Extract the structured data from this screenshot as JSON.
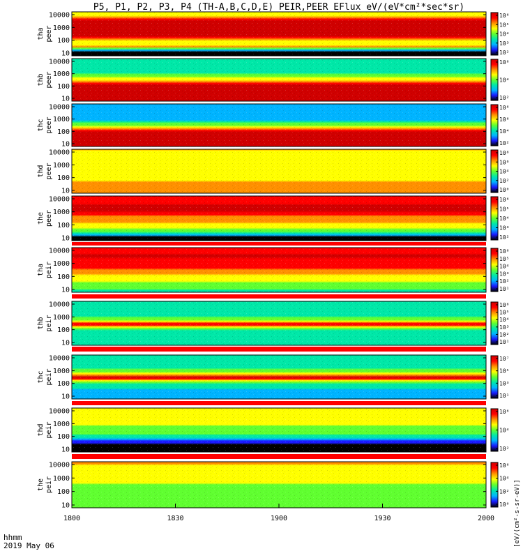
{
  "chart_data": {
    "type": "heatmap",
    "title": "P5, P1, P2, P3, P4 (TH-A,B,C,D,E) PEIR,PEER EFlux eV/(eV*cm²*sec*sr)",
    "x": {
      "label_line1": "hhmm",
      "label_line2": "2019 May 06",
      "ticks": [
        "1800",
        "1830",
        "1900",
        "1930",
        "2000"
      ],
      "range_hhmm": [
        "1800",
        "2000"
      ]
    },
    "colorbar_label": "[eV/(cm²-s-sr-eV)]",
    "palette": [
      "#000000",
      "#1a1aff",
      "#00b4ff",
      "#00e8a8",
      "#60ff30",
      "#ffff00",
      "#ff9000",
      "#ff0000",
      "#d00000"
    ],
    "panels": [
      {
        "probe": "tha",
        "species": "peer",
        "y_ticks": [
          "10000",
          "1000",
          "100",
          "10"
        ],
        "cb_ticks": [
          "10⁶",
          "10⁵",
          "10⁴",
          "10³",
          "10²"
        ],
        "profile": [
          [
            0.0,
            4.5
          ],
          [
            0.1,
            4.8
          ],
          [
            0.18,
            8.0
          ],
          [
            0.55,
            7.8
          ],
          [
            0.7,
            4.5
          ],
          [
            0.8,
            6.0
          ],
          [
            0.88,
            1.5
          ],
          [
            0.93,
            0.0
          ],
          [
            1.0,
            0.0
          ]
        ]
      },
      {
        "probe": "thb",
        "species": "peer",
        "y_ticks": [
          "10000",
          "1000",
          "100",
          "10"
        ],
        "cb_ticks": [
          "10⁶",
          "10⁴",
          "10²"
        ],
        "profile": [
          [
            0.0,
            3.0
          ],
          [
            0.3,
            3.2
          ],
          [
            0.45,
            4.5
          ],
          [
            0.55,
            6.0
          ],
          [
            0.62,
            7.5
          ],
          [
            0.7,
            8.0
          ],
          [
            1.0,
            8.0
          ]
        ]
      },
      {
        "probe": "thc",
        "species": "peer",
        "y_ticks": [
          "10000",
          "1000",
          "100",
          "10"
        ],
        "cb_ticks": [
          "10⁸",
          "10⁶",
          "10⁴",
          "10²"
        ],
        "profile": [
          [
            0.0,
            2.0
          ],
          [
            0.35,
            1.6
          ],
          [
            0.4,
            3.0
          ],
          [
            0.5,
            4.0
          ],
          [
            0.58,
            6.0
          ],
          [
            0.66,
            7.5
          ],
          [
            0.75,
            8.0
          ],
          [
            1.0,
            8.0
          ]
        ]
      },
      {
        "probe": "thd",
        "species": "peer",
        "y_ticks": [
          "10000",
          "1000",
          "100",
          "10"
        ],
        "cb_ticks": [
          "10⁸",
          "10⁶",
          "10⁴",
          "10²",
          "10⁰"
        ],
        "profile": [
          [
            0.0,
            5.5
          ],
          [
            0.35,
            5.2
          ],
          [
            0.5,
            4.6
          ],
          [
            0.6,
            5.0
          ],
          [
            0.75,
            5.6
          ],
          [
            1.0,
            6.2
          ]
        ]
      },
      {
        "probe": "the",
        "species": "peer",
        "y_ticks": [
          "10000",
          "1000",
          "100",
          "10"
        ],
        "cb_ticks": [
          "10⁶",
          "10⁵",
          "10⁴",
          "10³",
          "10²"
        ],
        "profile": [
          [
            0.0,
            6.5
          ],
          [
            0.1,
            7.2
          ],
          [
            0.3,
            7.8
          ],
          [
            0.5,
            6.0
          ],
          [
            0.7,
            4.8
          ],
          [
            0.82,
            4.0
          ],
          [
            0.88,
            1.5
          ],
          [
            0.92,
            0.0
          ],
          [
            1.0,
            0.0
          ]
        ]
      },
      {
        "probe": "tha",
        "species": "peir",
        "y_ticks": [
          "10000",
          "1000",
          "100",
          "10"
        ],
        "cb_ticks": [
          "10⁶",
          "10⁵",
          "10⁴",
          "10³",
          "10²",
          "10¹"
        ],
        "profile": [
          [
            0.0,
            7.0
          ],
          [
            0.2,
            7.6
          ],
          [
            0.45,
            6.8
          ],
          [
            0.6,
            5.5
          ],
          [
            0.75,
            4.6
          ],
          [
            0.9,
            3.8
          ],
          [
            1.0,
            3.0
          ]
        ]
      },
      {
        "probe": "thb",
        "species": "peir",
        "y_ticks": [
          "10000",
          "1000",
          "100",
          "10"
        ],
        "cb_ticks": [
          "10⁶",
          "10⁵",
          "10⁴",
          "10³",
          "10²",
          "10¹"
        ],
        "profile": [
          [
            0.0,
            3.3
          ],
          [
            0.35,
            3.3
          ],
          [
            0.45,
            5.0
          ],
          [
            0.52,
            7.5
          ],
          [
            0.58,
            5.0
          ],
          [
            0.66,
            3.2
          ],
          [
            1.0,
            3.0
          ]
        ]
      },
      {
        "probe": "thc",
        "species": "peir",
        "y_ticks": [
          "10000",
          "1000",
          "100",
          "10"
        ],
        "cb_ticks": [
          "10⁷",
          "10⁵",
          "10³",
          "10¹"
        ],
        "profile": [
          [
            0.0,
            2.6
          ],
          [
            0.2,
            2.6
          ],
          [
            0.3,
            3.5
          ],
          [
            0.42,
            5.0
          ],
          [
            0.5,
            7.6
          ],
          [
            0.58,
            5.5
          ],
          [
            0.66,
            3.0
          ],
          [
            0.8,
            2.3
          ],
          [
            1.0,
            2.1
          ]
        ]
      },
      {
        "probe": "thd",
        "species": "peir",
        "y_ticks": [
          "10000",
          "1000",
          "100",
          "10"
        ],
        "cb_ticks": [
          "10⁶",
          "10⁴",
          "10²"
        ],
        "profile": [
          [
            0.0,
            5.4
          ],
          [
            0.2,
            5.0
          ],
          [
            0.4,
            4.5
          ],
          [
            0.55,
            3.8
          ],
          [
            0.65,
            3.0
          ],
          [
            0.75,
            0.6
          ],
          [
            1.0,
            0.0
          ]
        ]
      },
      {
        "probe": "the",
        "species": "peir",
        "y_ticks": [
          "10000",
          "1000",
          "100",
          "10"
        ],
        "cb_ticks": [
          "10⁶",
          "10⁴",
          "10²",
          "10⁰"
        ],
        "profile": [
          [
            0.0,
            5.6
          ],
          [
            0.3,
            4.9
          ],
          [
            0.6,
            4.2
          ],
          [
            0.8,
            3.8
          ],
          [
            1.0,
            3.5
          ]
        ]
      }
    ]
  }
}
